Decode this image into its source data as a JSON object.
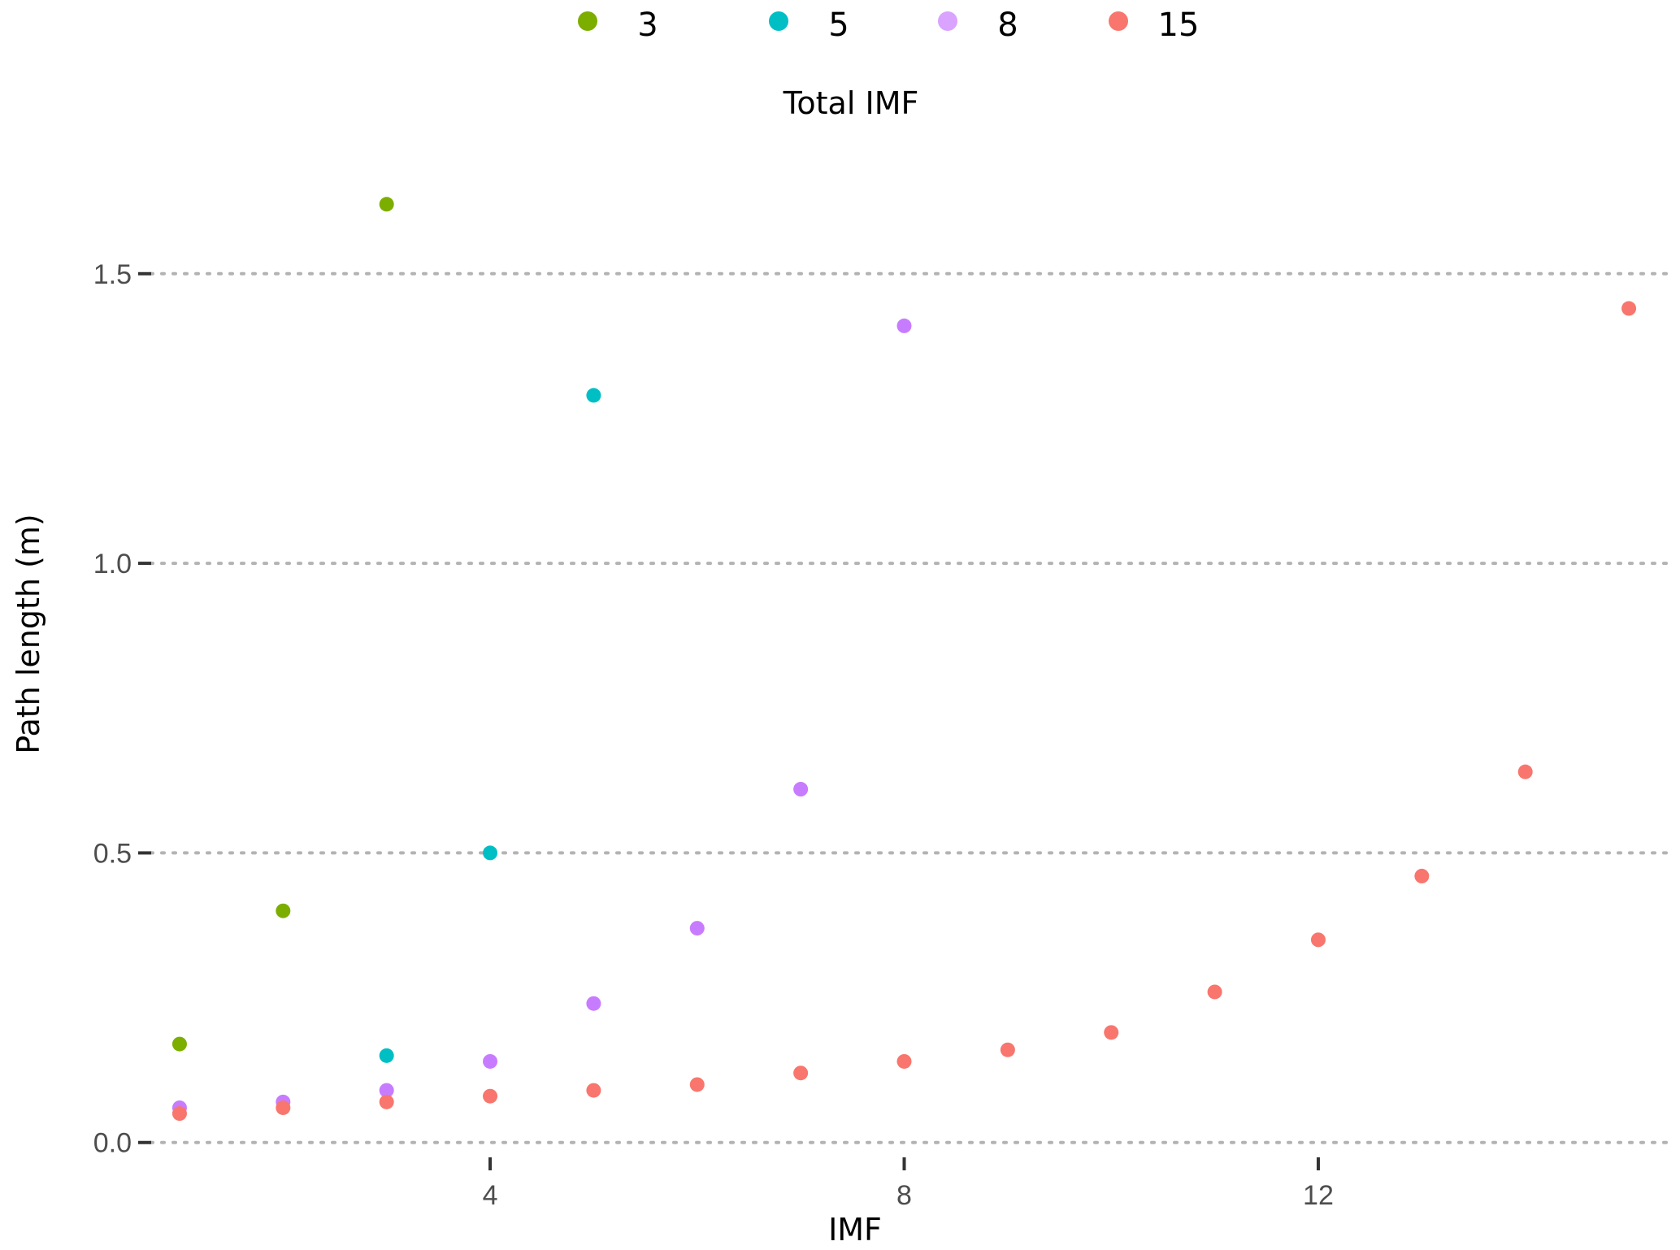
{
  "chart_data": {
    "type": "scatter",
    "xlabel": "IMF",
    "ylabel": "Path length (m)",
    "xlim": [
      0.6,
      15.4
    ],
    "ylim": [
      -0.02,
      1.72
    ],
    "x_ticks": [
      4,
      8,
      12
    ],
    "y_ticks": [
      0.0,
      0.5,
      1.0,
      1.5
    ],
    "y_tick_labels": [
      "0.0",
      "0.5",
      "1.0",
      "1.5"
    ],
    "grid": "horizontal dotted",
    "legend": {
      "title": "Total IMF",
      "position": "top",
      "entries": [
        "3",
        "5",
        "8",
        "15"
      ]
    },
    "series": [
      {
        "name": "3",
        "color": "#7cae00",
        "x": [
          1,
          2,
          3
        ],
        "y": [
          0.17,
          0.4,
          1.62
        ]
      },
      {
        "name": "5",
        "color": "#00bfc4",
        "x": [
          3,
          4,
          5
        ],
        "y": [
          0.15,
          0.5,
          1.29
        ]
      },
      {
        "name": "8",
        "color": "#c77cff",
        "x": [
          1,
          2,
          3,
          4,
          5,
          6,
          7,
          8
        ],
        "y": [
          0.06,
          0.07,
          0.09,
          0.14,
          0.24,
          0.37,
          0.61,
          1.41
        ]
      },
      {
        "name": "15",
        "color": "#f8766d",
        "x": [
          1,
          2,
          3,
          4,
          5,
          6,
          7,
          8,
          9,
          10,
          11,
          12,
          13,
          14,
          15
        ],
        "y": [
          0.05,
          0.06,
          0.07,
          0.08,
          0.09,
          0.1,
          0.12,
          0.14,
          0.16,
          0.19,
          0.26,
          0.35,
          0.46,
          0.64,
          1.44
        ]
      }
    ]
  }
}
